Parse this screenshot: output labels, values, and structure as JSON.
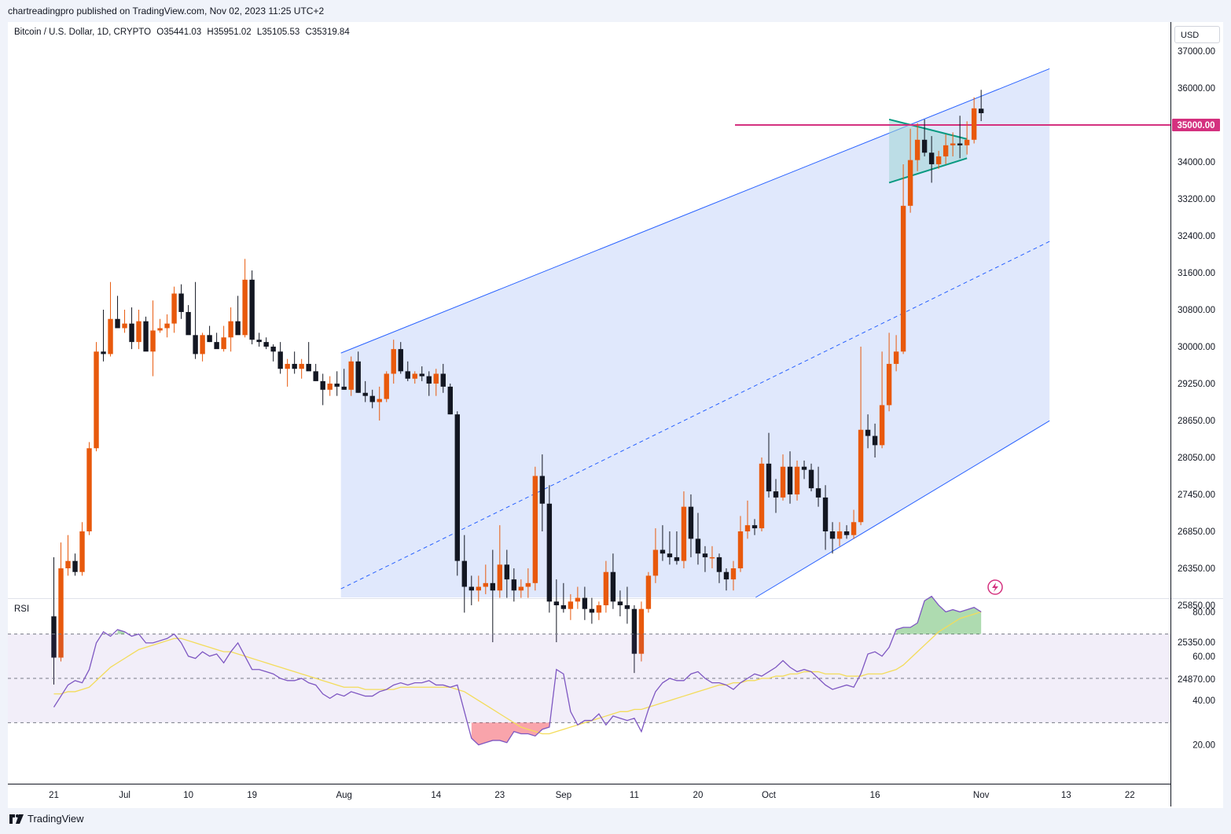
{
  "header": {
    "published_by": "chartreadingpro published on TradingView.com, Nov 02, 2023 11:25 UTC+2"
  },
  "legend": {
    "symbol": "Bitcoin / U.S. Dollar, 1D, CRYPTO",
    "open": "O35441.03",
    "high": "H35951.02",
    "low": "L35105.53",
    "close": "C35319.84"
  },
  "currency_button": "USD",
  "rsi_label": "RSI",
  "brand_label": "TradingView",
  "colors": {
    "up": "#e8590c",
    "down": "#131722",
    "channel_line": "#2962ff",
    "channel_fill": "#dbe4fb",
    "resistance": "#d4317f",
    "triangle": "#089981",
    "rsi_line": "#7e57c2",
    "rsi_ma": "#f3dc5a"
  },
  "chart_data": {
    "type": "candlestick",
    "y_axis_ticks": [
      "37000.00",
      "36000.00",
      "35000.00",
      "34000.00",
      "33200.00",
      "32400.00",
      "31600.00",
      "30800.00",
      "30000.00",
      "29250.00",
      "28650.00",
      "28050.00",
      "27450.00",
      "26850.00",
      "26350.00",
      "25850.00",
      "25350.00",
      "24870.00"
    ],
    "y_tick_values": [
      37000,
      36000,
      35000,
      34000,
      33200,
      32400,
      31600,
      30800,
      30000,
      29250,
      28650,
      28050,
      27450,
      26850,
      26350,
      25850,
      25350,
      24870
    ],
    "x_axis_ticks": [
      "21",
      "Jul",
      "10",
      "19",
      "Aug",
      "14",
      "23",
      "Sep",
      "11",
      "20",
      "Oct",
      "16",
      "Nov",
      "13",
      "22"
    ],
    "x_tick_days": [
      0,
      10,
      19,
      28,
      41,
      54,
      63,
      72,
      82,
      91,
      101,
      116,
      131,
      143,
      152
    ],
    "resistance_level": {
      "label": "35000.00",
      "value": 35000
    },
    "rsi_ticks": [
      "80.00",
      "60.00",
      "40.00",
      "20.00"
    ],
    "rsi_tick_values": [
      80,
      60,
      40,
      20
    ],
    "rsi_bands": {
      "upper": 70,
      "middle": 50,
      "lower": 30
    },
    "channel": {
      "upper": [
        [
          41,
          29900
        ],
        [
          131,
          35880
        ]
      ],
      "lower": [
        [
          72,
          24200
        ],
        [
          131,
          28020
        ]
      ],
      "mid": [
        [
          41,
          26100
        ],
        [
          131,
          31680
        ]
      ]
    },
    "triangle": {
      "upper": [
        [
          118,
          35150
        ],
        [
          129,
          34620
        ]
      ],
      "lower": [
        [
          118,
          33550
        ],
        [
          129,
          34100
        ]
      ]
    },
    "candles": [
      [
        0,
        25700,
        26500,
        24800,
        25150
      ],
      [
        1,
        25150,
        26700,
        25100,
        26350
      ],
      [
        2,
        26350,
        26800,
        26250,
        26450
      ],
      [
        3,
        26450,
        26550,
        26250,
        26300
      ],
      [
        4,
        26300,
        27000,
        26250,
        26850
      ],
      [
        5,
        26850,
        28300,
        26800,
        28200
      ],
      [
        6,
        28200,
        30100,
        28150,
        29900
      ],
      [
        7,
        29900,
        30800,
        29700,
        29850
      ],
      [
        8,
        29850,
        31400,
        29800,
        30600
      ],
      [
        9,
        30600,
        31100,
        30400,
        30400
      ],
      [
        10,
        30400,
        30800,
        30300,
        30500
      ],
      [
        11,
        30500,
        30850,
        29950,
        30100
      ],
      [
        12,
        30100,
        30800,
        29950,
        30550
      ],
      [
        13,
        30550,
        30650,
        29950,
        29900
      ],
      [
        14,
        29900,
        31000,
        29400,
        30350
      ],
      [
        15,
        30350,
        30600,
        30300,
        30400
      ],
      [
        16,
        30400,
        30700,
        30200,
        30500
      ],
      [
        17,
        30500,
        31300,
        30300,
        31150
      ],
      [
        18,
        31150,
        31350,
        30600,
        30750
      ],
      [
        19,
        30750,
        30900,
        30300,
        30250
      ],
      [
        20,
        30250,
        31400,
        29750,
        29850
      ],
      [
        21,
        29850,
        30300,
        29700,
        30250
      ],
      [
        22,
        30250,
        30450,
        30100,
        30100
      ],
      [
        23,
        30100,
        30300,
        30000,
        29950
      ],
      [
        24,
        29950,
        30450,
        29900,
        30200
      ],
      [
        25,
        30200,
        30850,
        29900,
        30550
      ],
      [
        26,
        30550,
        31100,
        30350,
        30250
      ],
      [
        27,
        30250,
        31900,
        30200,
        31450
      ],
      [
        28,
        31450,
        31650,
        30050,
        30150
      ],
      [
        29,
        30150,
        30300,
        30000,
        30100
      ],
      [
        30,
        30100,
        30200,
        29950,
        30000
      ],
      [
        31,
        30000,
        30050,
        29700,
        29900
      ],
      [
        32,
        29900,
        30100,
        29450,
        29550
      ],
      [
        33,
        29550,
        29750,
        29200,
        29650
      ],
      [
        34,
        29650,
        29900,
        29450,
        29550
      ],
      [
        35,
        29550,
        29750,
        29350,
        29650
      ],
      [
        36,
        29650,
        30100,
        29550,
        29500
      ],
      [
        37,
        29500,
        29650,
        29300,
        29300
      ],
      [
        38,
        29300,
        29450,
        28900,
        29150
      ],
      [
        39,
        29150,
        29400,
        29050,
        29250
      ],
      [
        40,
        29250,
        29500,
        29050,
        29200
      ],
      [
        41,
        29200,
        29550,
        29150,
        29150
      ],
      [
        42,
        29150,
        29800,
        29050,
        29700
      ],
      [
        43,
        29700,
        29900,
        29100,
        29100
      ],
      [
        44,
        29100,
        29300,
        28950,
        29050
      ],
      [
        45,
        29050,
        29150,
        28850,
        28950
      ],
      [
        46,
        28950,
        29200,
        28650,
        29000
      ],
      [
        47,
        29000,
        29500,
        28950,
        29450
      ],
      [
        48,
        29450,
        30150,
        29250,
        29950
      ],
      [
        49,
        29950,
        30100,
        29450,
        29500
      ],
      [
        50,
        29500,
        29700,
        29300,
        29350
      ],
      [
        51,
        29350,
        29500,
        29250,
        29450
      ],
      [
        52,
        29450,
        29600,
        29300,
        29400
      ],
      [
        53,
        29400,
        29500,
        29050,
        29250
      ],
      [
        54,
        29250,
        29550,
        29050,
        29450
      ],
      [
        55,
        29450,
        29650,
        29100,
        29200
      ],
      [
        56,
        29200,
        29250,
        28750,
        28750
      ],
      [
        57,
        28750,
        28800,
        26250,
        26450
      ],
      [
        58,
        26450,
        26800,
        25750,
        26100
      ],
      [
        59,
        26100,
        26250,
        25850,
        26050
      ],
      [
        60,
        26050,
        26250,
        25900,
        26100
      ],
      [
        61,
        26100,
        26400,
        26000,
        26150
      ],
      [
        62,
        26150,
        26600,
        25350,
        26050
      ],
      [
        63,
        26050,
        26950,
        25950,
        26400
      ],
      [
        64,
        26400,
        26600,
        25950,
        26200
      ],
      [
        65,
        26200,
        26350,
        25900,
        26050
      ],
      [
        66,
        26050,
        26200,
        25950,
        26100
      ],
      [
        67,
        26100,
        26350,
        25950,
        26150
      ],
      [
        68,
        26150,
        27900,
        26050,
        27750
      ],
      [
        69,
        27750,
        28100,
        26850,
        27300
      ],
      [
        70,
        27300,
        27600,
        25750,
        25900
      ],
      [
        71,
        25900,
        26200,
        25350,
        25850
      ],
      [
        72,
        25850,
        26150,
        25750,
        25800
      ],
      [
        73,
        25800,
        26000,
        25650,
        25900
      ],
      [
        74,
        25900,
        26100,
        25800,
        25950
      ],
      [
        75,
        25950,
        26100,
        25650,
        25800
      ],
      [
        76,
        25800,
        25950,
        25600,
        25750
      ],
      [
        77,
        25750,
        25900,
        25650,
        25850
      ],
      [
        78,
        25850,
        26450,
        25750,
        26300
      ],
      [
        79,
        26300,
        26550,
        25800,
        25900
      ],
      [
        80,
        25900,
        26050,
        25700,
        25850
      ],
      [
        81,
        25850,
        26100,
        25600,
        25800
      ],
      [
        82,
        25800,
        25850,
        24950,
        25200
      ],
      [
        83,
        25200,
        25900,
        25100,
        25800
      ],
      [
        84,
        25800,
        26300,
        25750,
        26250
      ],
      [
        85,
        26250,
        26900,
        26150,
        26600
      ],
      [
        86,
        26600,
        26950,
        26450,
        26550
      ],
      [
        87,
        26550,
        26850,
        26400,
        26500
      ],
      [
        88,
        26500,
        26850,
        26400,
        26450
      ],
      [
        89,
        26450,
        27500,
        26350,
        27250
      ],
      [
        90,
        27250,
        27450,
        26500,
        26750
      ],
      [
        91,
        26750,
        27150,
        26400,
        26550
      ],
      [
        92,
        26550,
        26650,
        26300,
        26500
      ],
      [
        93,
        26500,
        26650,
        26350,
        26500
      ],
      [
        94,
        26500,
        26550,
        26150,
        26300
      ],
      [
        95,
        26300,
        26350,
        26050,
        26200
      ],
      [
        96,
        26200,
        26450,
        26050,
        26350
      ],
      [
        97,
        26350,
        27100,
        26300,
        26850
      ],
      [
        98,
        26850,
        27350,
        26750,
        26950
      ],
      [
        99,
        26950,
        27050,
        26800,
        26900
      ],
      [
        100,
        26900,
        28050,
        26850,
        27950
      ],
      [
        101,
        27950,
        28450,
        27400,
        27500
      ],
      [
        102,
        27500,
        27700,
        27150,
        27400
      ],
      [
        103,
        27400,
        28100,
        27350,
        27900
      ],
      [
        104,
        27900,
        28150,
        27300,
        27450
      ],
      [
        105,
        27450,
        28000,
        27350,
        27900
      ],
      [
        106,
        27900,
        28000,
        27700,
        27850
      ],
      [
        107,
        27850,
        27950,
        27500,
        27550
      ],
      [
        108,
        27550,
        27900,
        27250,
        27400
      ],
      [
        109,
        27400,
        27600,
        26600,
        26850
      ],
      [
        110,
        26850,
        27000,
        26550,
        26750
      ],
      [
        111,
        26750,
        27000,
        26650,
        26850
      ],
      [
        112,
        26850,
        26950,
        26750,
        26800
      ],
      [
        113,
        26800,
        27200,
        26750,
        27000
      ],
      [
        114,
        27000,
        30000,
        26950,
        28500
      ],
      [
        115,
        28500,
        28750,
        28200,
        28400
      ],
      [
        116,
        28400,
        28600,
        28050,
        28250
      ],
      [
        117,
        28250,
        29900,
        28200,
        28900
      ],
      [
        118,
        28900,
        30300,
        28800,
        29650
      ],
      [
        119,
        29650,
        30250,
        29500,
        29900
      ],
      [
        120,
        29900,
        33950,
        29850,
        33050
      ],
      [
        121,
        33050,
        34900,
        32900,
        34050
      ],
      [
        122,
        34050,
        35050,
        33800,
        34600
      ],
      [
        123,
        34600,
        35150,
        34150,
        34250
      ],
      [
        124,
        34250,
        34700,
        33550,
        33950
      ],
      [
        125,
        33950,
        34300,
        33850,
        34150
      ],
      [
        126,
        34150,
        34750,
        33950,
        34450
      ],
      [
        127,
        34450,
        34800,
        34150,
        34500
      ],
      [
        128,
        34500,
        35250,
        34100,
        34450
      ],
      [
        129,
        34450,
        35100,
        34200,
        34600
      ],
      [
        130,
        34600,
        35750,
        34500,
        35450
      ],
      [
        131,
        35441,
        35951,
        35105,
        35320
      ]
    ],
    "rsi": [
      37,
      42,
      47,
      49,
      48,
      54,
      66,
      71,
      69,
      72,
      71,
      69,
      70,
      66,
      66,
      67,
      68,
      70,
      66,
      60,
      59,
      62,
      60,
      61,
      57,
      62,
      66,
      60,
      54,
      54,
      53,
      52,
      50,
      49,
      49,
      50,
      48,
      47,
      43,
      41,
      43,
      42,
      44,
      43,
      42,
      42,
      44,
      45,
      47,
      48,
      47,
      48,
      48,
      49,
      47,
      47,
      46,
      47,
      35,
      23,
      20,
      21,
      22,
      22,
      21,
      26,
      25,
      25,
      24,
      27,
      28,
      54,
      52,
      35,
      29,
      31,
      31,
      34,
      29,
      33,
      32,
      31,
      32,
      26,
      36,
      44,
      48,
      50,
      49,
      49,
      52,
      53,
      50,
      48,
      48,
      47,
      45,
      48,
      50,
      52,
      51,
      53,
      55,
      58,
      55,
      53,
      54,
      53,
      50,
      47,
      45,
      46,
      47,
      46,
      52,
      61,
      62,
      60,
      64,
      72,
      73,
      73,
      75,
      85,
      87,
      83,
      80,
      81,
      80,
      81,
      82,
      80
    ],
    "rsi_ma": [
      43,
      43,
      44,
      44,
      45,
      46,
      49,
      52,
      55,
      57,
      59,
      61,
      63,
      64,
      65,
      66,
      67,
      68,
      68,
      67,
      66,
      65,
      64,
      63,
      62,
      62,
      61,
      60,
      59,
      58,
      57,
      56,
      55,
      54,
      53,
      52,
      51,
      50,
      49,
      48,
      47,
      46,
      46,
      46,
      45,
      45,
      45,
      45,
      45,
      46,
      46,
      46,
      46,
      46,
      46,
      46,
      46,
      45,
      44,
      42,
      40,
      38,
      36,
      34,
      32,
      30,
      28,
      27,
      26,
      25,
      25,
      26,
      27,
      28,
      29,
      30,
      31,
      32,
      33,
      34,
      35,
      35,
      36,
      36,
      37,
      38,
      39,
      40,
      41,
      42,
      43,
      44,
      45,
      46,
      47,
      47,
      48,
      48,
      49,
      49,
      50,
      50,
      51,
      51,
      52,
      52,
      53,
      53,
      53,
      52,
      52,
      52,
      51,
      51,
      51,
      52,
      52,
      52,
      53,
      54,
      56,
      59,
      62,
      65,
      68,
      71,
      73,
      75,
      77,
      78,
      79,
      80
    ]
  }
}
